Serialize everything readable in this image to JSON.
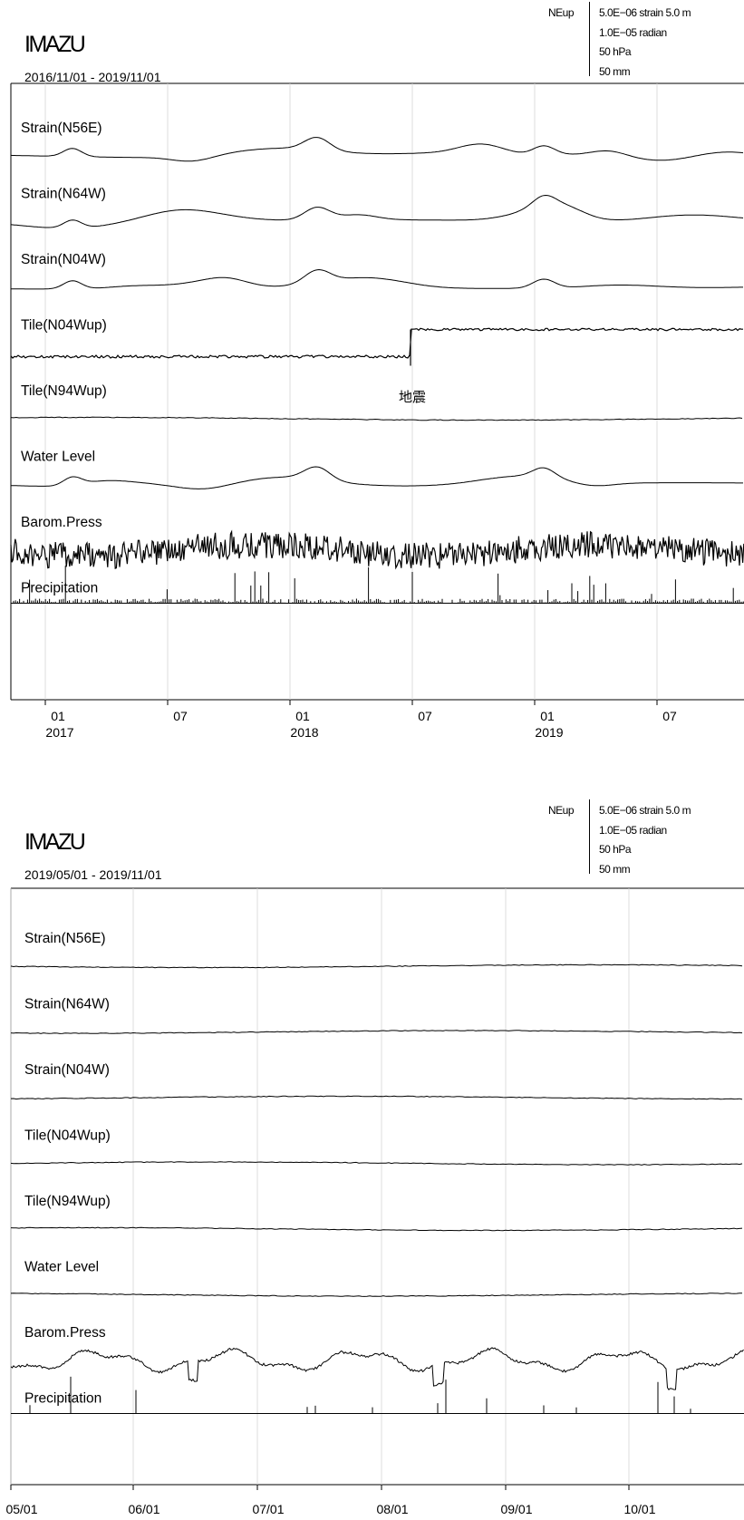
{
  "legend": {
    "components": "NEup",
    "lines": [
      "5.0E−06 strain 5.0 m",
      "1.0E−05 radian",
      "50 hPa",
      "50 mm"
    ]
  },
  "chart_data": [
    {
      "type": "line",
      "station": "IMAZU",
      "title": "2016/11/01 - 2019/11/01",
      "series": [
        {
          "label": "Strain(N56E)",
          "style": "smooth"
        },
        {
          "label": "Strain(N64W)",
          "style": "smooth"
        },
        {
          "label": "Strain(N04W)",
          "style": "smooth"
        },
        {
          "label": "Tile(N04Wup)",
          "style": "step"
        },
        {
          "label": "Tile(N94Wup)",
          "style": "flat"
        },
        {
          "label": "Water Level",
          "style": "smooth"
        },
        {
          "label": "Barom.Press",
          "style": "noisy"
        },
        {
          "label": "Precipitation",
          "style": "bars"
        }
      ],
      "x_ticks": [
        {
          "month": "01",
          "year": "2017"
        },
        {
          "month": "07",
          "year": ""
        },
        {
          "month": "01",
          "year": "2018"
        },
        {
          "month": "07",
          "year": ""
        },
        {
          "month": "01",
          "year": "2019"
        },
        {
          "month": "07",
          "year": ""
        }
      ],
      "annotations": [
        {
          "text": "地震"
        }
      ],
      "grid": true
    },
    {
      "type": "line",
      "station": "IMAZU",
      "title": "2019/05/01 - 2019/11/01",
      "series": [
        {
          "label": "Strain(N56E)",
          "style": "flat"
        },
        {
          "label": "Strain(N64W)",
          "style": "flat"
        },
        {
          "label": "Strain(N04W)",
          "style": "flat"
        },
        {
          "label": "Tile(N04Wup)",
          "style": "flat"
        },
        {
          "label": "Tile(N94Wup)",
          "style": "flat"
        },
        {
          "label": "Water Level",
          "style": "flat"
        },
        {
          "label": "Barom.Press",
          "style": "wavy"
        },
        {
          "label": "Precipitation",
          "style": "bars"
        }
      ],
      "x_ticks": [
        {
          "month": "05/01",
          "year": ""
        },
        {
          "month": "06/01",
          "year": ""
        },
        {
          "month": "07/01",
          "year": ""
        },
        {
          "month": "08/01",
          "year": ""
        },
        {
          "month": "09/01",
          "year": ""
        },
        {
          "month": "10/01",
          "year": ""
        }
      ],
      "annotations": [],
      "grid": true
    }
  ]
}
